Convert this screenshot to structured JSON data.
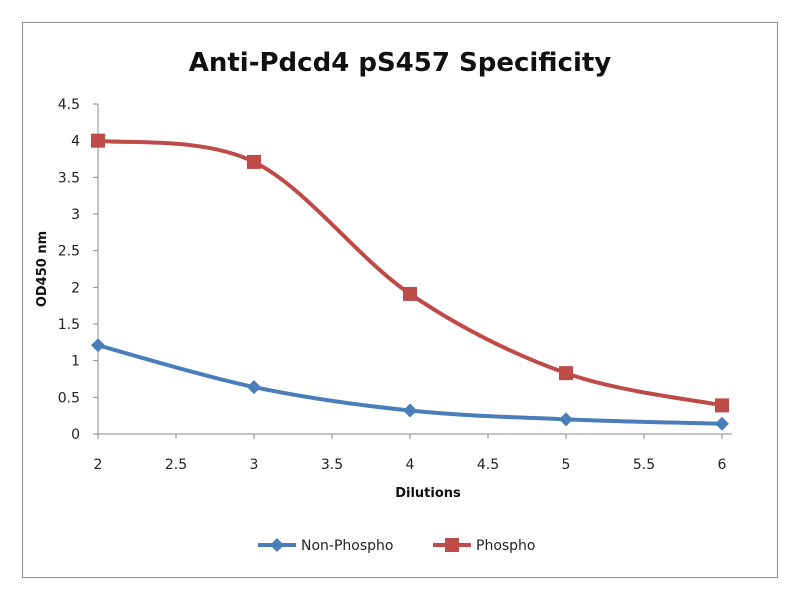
{
  "chart_data": {
    "type": "line",
    "title": "Anti-Pdcd4 pS457 Specificity",
    "xlabel": "Dilutions",
    "ylabel": "OD450 nm",
    "xlim": [
      2,
      6
    ],
    "ylim": [
      0,
      4.5
    ],
    "xticks": [
      "2",
      "2.5",
      "3",
      "3.5",
      "4",
      "4.5",
      "5",
      "5.5",
      "6"
    ],
    "yticks": [
      "0",
      "0.5",
      "1",
      "1.5",
      "2",
      "2.5",
      "3",
      "3.5",
      "4",
      "4.5"
    ],
    "grid": false,
    "legend_position": "bottom",
    "x": [
      2,
      3,
      4,
      5,
      6
    ],
    "series": [
      {
        "name": "Non-Phospho",
        "color": "#4a7ebb",
        "marker": "diamond",
        "values": [
          1.21,
          0.64,
          0.32,
          0.2,
          0.14
        ]
      },
      {
        "name": "Phospho",
        "color": "#be4b48",
        "marker": "square",
        "values": [
          4.0,
          3.71,
          1.91,
          0.83,
          0.39
        ]
      }
    ]
  }
}
